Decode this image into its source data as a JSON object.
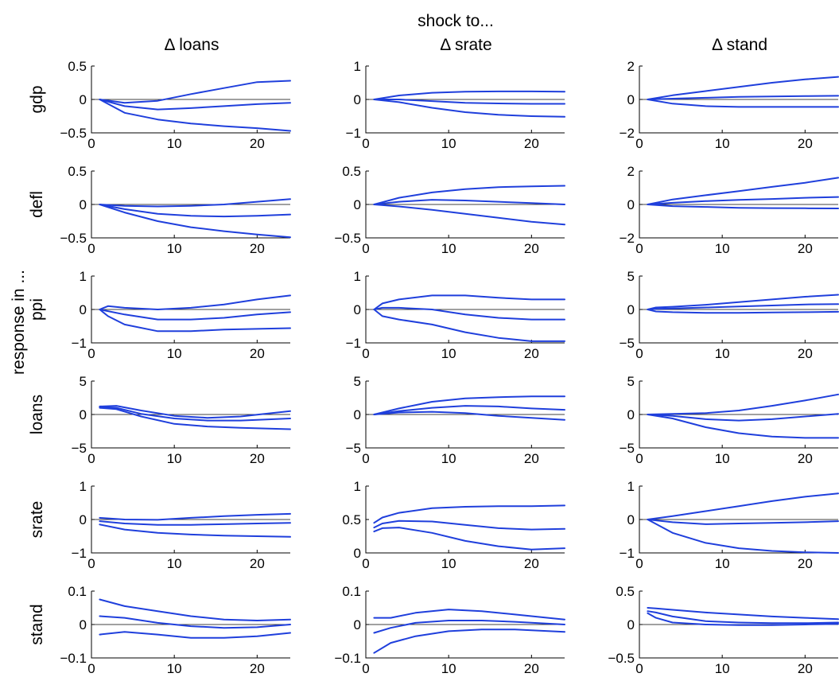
{
  "chart_data": {
    "type": "line",
    "title": "shock to...",
    "ylabel": "response in ...",
    "line_color": "#1f3fdc",
    "zero_line_color": "#000000",
    "xlim": [
      0,
      24
    ],
    "xticks": [
      0,
      10,
      20
    ],
    "columns": [
      "Δ loans",
      "Δ srate",
      "Δ stand"
    ],
    "rows": [
      "gdp",
      "defl",
      "ppi",
      "loans",
      "srate",
      "stand"
    ],
    "panels": [
      {
        "row": "gdp",
        "column": "Δ loans",
        "ylim": [
          -0.5,
          0.5
        ],
        "yticks": [
          -0.5,
          0,
          0.5
        ],
        "x": [
          1,
          4,
          8,
          12,
          16,
          20,
          24
        ],
        "series": [
          {
            "values": [
              0,
              -0.05,
              -0.02,
              0.08,
              0.17,
              0.26,
              0.28
            ]
          },
          {
            "values": [
              0,
              -0.1,
              -0.15,
              -0.13,
              -0.1,
              -0.07,
              -0.05
            ]
          },
          {
            "values": [
              0,
              -0.2,
              -0.3,
              -0.36,
              -0.4,
              -0.43,
              -0.47
            ]
          }
        ]
      },
      {
        "row": "gdp",
        "column": "Δ srate",
        "ylim": [
          -1,
          1
        ],
        "yticks": [
          -1,
          0,
          1
        ],
        "x": [
          1,
          4,
          8,
          12,
          16,
          20,
          24
        ],
        "series": [
          {
            "values": [
              0,
              0.12,
              0.2,
              0.23,
              0.24,
              0.24,
              0.23
            ]
          },
          {
            "values": [
              0,
              0,
              -0.05,
              -0.1,
              -0.12,
              -0.13,
              -0.13
            ]
          },
          {
            "values": [
              0,
              -0.08,
              -0.25,
              -0.38,
              -0.46,
              -0.5,
              -0.52
            ]
          }
        ]
      },
      {
        "row": "gdp",
        "column": "Δ stand",
        "ylim": [
          -2,
          2
        ],
        "yticks": [
          -2,
          0,
          2
        ],
        "x": [
          1,
          4,
          8,
          12,
          16,
          20,
          24
        ],
        "series": [
          {
            "values": [
              0,
              0.25,
              0.5,
              0.75,
              1.0,
              1.2,
              1.35
            ]
          },
          {
            "values": [
              0,
              0.05,
              0.1,
              0.15,
              0.18,
              0.2,
              0.22
            ]
          },
          {
            "values": [
              0,
              -0.25,
              -0.4,
              -0.45,
              -0.45,
              -0.45,
              -0.45
            ]
          }
        ]
      },
      {
        "row": "defl",
        "column": "Δ loans",
        "ylim": [
          -0.5,
          0.5
        ],
        "yticks": [
          -0.5,
          0,
          0.5
        ],
        "x": [
          1,
          4,
          8,
          12,
          16,
          20,
          24
        ],
        "series": [
          {
            "values": [
              0,
              -0.02,
              -0.03,
              -0.02,
              0,
              0.04,
              0.08
            ]
          },
          {
            "values": [
              0,
              -0.07,
              -0.14,
              -0.17,
              -0.18,
              -0.17,
              -0.15
            ]
          },
          {
            "values": [
              0,
              -0.12,
              -0.25,
              -0.34,
              -0.4,
              -0.45,
              -0.49
            ]
          }
        ]
      },
      {
        "row": "defl",
        "column": "Δ srate",
        "ylim": [
          -0.5,
          0.5
        ],
        "yticks": [
          -0.5,
          0,
          0.5
        ],
        "x": [
          1,
          4,
          8,
          12,
          16,
          20,
          24
        ],
        "series": [
          {
            "values": [
              0,
              0.1,
              0.18,
              0.23,
              0.26,
              0.27,
              0.28
            ]
          },
          {
            "values": [
              0,
              0.04,
              0.07,
              0.06,
              0.04,
              0.02,
              0
            ]
          },
          {
            "values": [
              0,
              -0.03,
              -0.08,
              -0.14,
              -0.2,
              -0.26,
              -0.3
            ]
          }
        ]
      },
      {
        "row": "defl",
        "column": "Δ stand",
        "ylim": [
          -2,
          2
        ],
        "yticks": [
          -2,
          0,
          2
        ],
        "x": [
          1,
          4,
          8,
          12,
          16,
          20,
          24
        ],
        "series": [
          {
            "values": [
              0,
              0.3,
              0.55,
              0.8,
              1.05,
              1.3,
              1.6
            ]
          },
          {
            "values": [
              0,
              0.1,
              0.2,
              0.27,
              0.33,
              0.4,
              0.45
            ]
          },
          {
            "values": [
              0,
              -0.1,
              -0.15,
              -0.2,
              -0.22,
              -0.23,
              -0.24
            ]
          }
        ]
      },
      {
        "row": "ppi",
        "column": "Δ loans",
        "ylim": [
          -1,
          1
        ],
        "yticks": [
          -1,
          0,
          1
        ],
        "x": [
          1,
          2,
          4,
          8,
          12,
          16,
          20,
          24
        ],
        "series": [
          {
            "values": [
              0,
              0.1,
              0.05,
              0,
              0.05,
              0.15,
              0.3,
              0.42
            ]
          },
          {
            "values": [
              0,
              -0.05,
              -0.15,
              -0.3,
              -0.3,
              -0.25,
              -0.15,
              -0.08
            ]
          },
          {
            "values": [
              0,
              -0.2,
              -0.45,
              -0.65,
              -0.65,
              -0.6,
              -0.58,
              -0.56
            ]
          }
        ]
      },
      {
        "row": "ppi",
        "column": "Δ srate",
        "ylim": [
          -1,
          1
        ],
        "yticks": [
          -1,
          0,
          1
        ],
        "x": [
          1,
          2,
          4,
          8,
          12,
          16,
          20,
          24
        ],
        "series": [
          {
            "values": [
              0,
              0.18,
              0.3,
              0.42,
              0.42,
              0.35,
              0.3,
              0.3
            ]
          },
          {
            "values": [
              0,
              0.05,
              0.05,
              0,
              -0.15,
              -0.25,
              -0.3,
              -0.3
            ]
          },
          {
            "values": [
              0,
              -0.2,
              -0.3,
              -0.45,
              -0.68,
              -0.85,
              -0.95,
              -0.95
            ]
          }
        ]
      },
      {
        "row": "ppi",
        "column": "Δ stand",
        "ylim": [
          -5,
          5
        ],
        "yticks": [
          -5,
          0,
          5
        ],
        "x": [
          1,
          2,
          4,
          8,
          12,
          16,
          20,
          24
        ],
        "series": [
          {
            "values": [
              0,
              0.3,
              0.4,
              0.7,
              1.1,
              1.5,
              1.9,
              2.2
            ]
          },
          {
            "values": [
              0,
              0.1,
              0.15,
              0.3,
              0.45,
              0.6,
              0.75,
              0.8
            ]
          },
          {
            "values": [
              0,
              -0.3,
              -0.4,
              -0.5,
              -0.5,
              -0.45,
              -0.4,
              -0.35
            ]
          }
        ]
      },
      {
        "row": "loans",
        "column": "Δ loans",
        "ylim": [
          -5,
          5
        ],
        "yticks": [
          -5,
          0,
          5
        ],
        "x": [
          1,
          3,
          6,
          10,
          14,
          18,
          24
        ],
        "series": [
          {
            "values": [
              1.2,
              1.3,
              0.6,
              -0.2,
              -0.5,
              -0.3,
              0.5
            ]
          },
          {
            "values": [
              1.1,
              1.0,
              0.1,
              -0.6,
              -0.9,
              -0.9,
              -0.6
            ]
          },
          {
            "values": [
              1.0,
              0.8,
              -0.3,
              -1.4,
              -1.8,
              -2.0,
              -2.2
            ]
          }
        ]
      },
      {
        "row": "loans",
        "column": "Δ srate",
        "ylim": [
          -5,
          5
        ],
        "yticks": [
          -5,
          0,
          5
        ],
        "x": [
          1,
          4,
          8,
          12,
          16,
          20,
          24
        ],
        "series": [
          {
            "values": [
              0,
              0.9,
              1.9,
              2.4,
              2.6,
              2.7,
              2.7
            ]
          },
          {
            "values": [
              0,
              0.5,
              1.0,
              1.3,
              1.2,
              0.9,
              0.7
            ]
          },
          {
            "values": [
              0,
              0.3,
              0.4,
              0.2,
              -0.2,
              -0.5,
              -0.8
            ]
          }
        ]
      },
      {
        "row": "loans",
        "column": "Δ stand",
        "ylim": [
          -5,
          5
        ],
        "yticks": [
          -5,
          0,
          5
        ],
        "x": [
          1,
          4,
          8,
          12,
          16,
          20,
          24
        ],
        "series": [
          {
            "values": [
              0,
              0.1,
              0.2,
              0.6,
              1.3,
              2.1,
              3.0
            ]
          },
          {
            "values": [
              0,
              -0.2,
              -0.7,
              -0.9,
              -0.7,
              -0.3,
              0.1
            ]
          },
          {
            "values": [
              0,
              -0.6,
              -1.9,
              -2.8,
              -3.3,
              -3.5,
              -3.5
            ]
          }
        ]
      },
      {
        "row": "srate",
        "column": "Δ loans",
        "ylim": [
          -1,
          1
        ],
        "yticks": [
          -1,
          0,
          1
        ],
        "x": [
          1,
          4,
          8,
          12,
          16,
          20,
          24
        ],
        "series": [
          {
            "values": [
              0.05,
              0.0,
              -0.01,
              0.05,
              0.1,
              0.14,
              0.17
            ]
          },
          {
            "values": [
              -0.05,
              -0.12,
              -0.16,
              -0.16,
              -0.14,
              -0.12,
              -0.1
            ]
          },
          {
            "values": [
              -0.15,
              -0.3,
              -0.4,
              -0.45,
              -0.48,
              -0.5,
              -0.52
            ]
          }
        ]
      },
      {
        "row": "srate",
        "column": "Δ srate",
        "ylim": [
          0,
          1
        ],
        "yticks": [
          0,
          0.5,
          1
        ],
        "x": [
          1,
          2,
          4,
          8,
          12,
          16,
          20,
          24
        ],
        "series": [
          {
            "values": [
              0.45,
              0.53,
              0.6,
              0.67,
              0.69,
              0.7,
              0.7,
              0.71
            ]
          },
          {
            "values": [
              0.38,
              0.44,
              0.48,
              0.47,
              0.42,
              0.37,
              0.35,
              0.36
            ]
          },
          {
            "values": [
              0.32,
              0.37,
              0.38,
              0.3,
              0.18,
              0.1,
              0.05,
              0.07
            ]
          }
        ]
      },
      {
        "row": "srate",
        "column": "Δ stand",
        "ylim": [
          -1,
          1
        ],
        "yticks": [
          -1,
          0,
          1
        ],
        "x": [
          1,
          4,
          8,
          12,
          16,
          20,
          24
        ],
        "series": [
          {
            "values": [
              0,
              0.1,
              0.25,
              0.4,
              0.55,
              0.68,
              0.78
            ]
          },
          {
            "values": [
              0,
              -0.08,
              -0.14,
              -0.12,
              -0.1,
              -0.08,
              -0.05
            ]
          },
          {
            "values": [
              0,
              -0.4,
              -0.7,
              -0.86,
              -0.94,
              -0.98,
              -1.0
            ]
          }
        ]
      },
      {
        "row": "stand",
        "column": "Δ loans",
        "ylim": [
          -0.1,
          0.1
        ],
        "yticks": [
          -0.1,
          0,
          0.1
        ],
        "x": [
          1,
          4,
          8,
          12,
          16,
          20,
          24
        ],
        "series": [
          {
            "values": [
              0.075,
              0.055,
              0.04,
              0.025,
              0.015,
              0.012,
              0.015
            ]
          },
          {
            "values": [
              0.025,
              0.02,
              0.005,
              -0.005,
              -0.01,
              -0.008,
              0.0
            ]
          },
          {
            "values": [
              -0.03,
              -0.022,
              -0.03,
              -0.04,
              -0.04,
              -0.035,
              -0.025
            ]
          }
        ]
      },
      {
        "row": "stand",
        "column": "Δ srate",
        "ylim": [
          -0.1,
          0.1
        ],
        "yticks": [
          -0.1,
          0,
          0.1
        ],
        "x": [
          1,
          3,
          6,
          10,
          14,
          18,
          24
        ],
        "series": [
          {
            "values": [
              0.02,
              0.02,
              0.035,
              0.045,
              0.04,
              0.03,
              0.015
            ]
          },
          {
            "values": [
              -0.025,
              -0.01,
              0.005,
              0.012,
              0.012,
              0.008,
              0.0
            ]
          },
          {
            "values": [
              -0.085,
              -0.055,
              -0.035,
              -0.02,
              -0.015,
              -0.015,
              -0.022
            ]
          }
        ]
      },
      {
        "row": "stand",
        "column": "Δ stand",
        "ylim": [
          -0.5,
          0.5
        ],
        "yticks": [
          -0.5,
          0,
          0.5
        ],
        "x": [
          1,
          2,
          4,
          8,
          12,
          16,
          20,
          24
        ],
        "series": [
          {
            "values": [
              0.25,
              0.24,
              0.22,
              0.18,
              0.15,
              0.12,
              0.1,
              0.08
            ]
          },
          {
            "values": [
              0.2,
              0.18,
              0.12,
              0.05,
              0.03,
              0.02,
              0.02,
              0.03
            ]
          },
          {
            "values": [
              0.17,
              0.1,
              0.03,
              0.0,
              -0.01,
              -0.01,
              0.0,
              0.01
            ]
          }
        ]
      }
    ]
  }
}
